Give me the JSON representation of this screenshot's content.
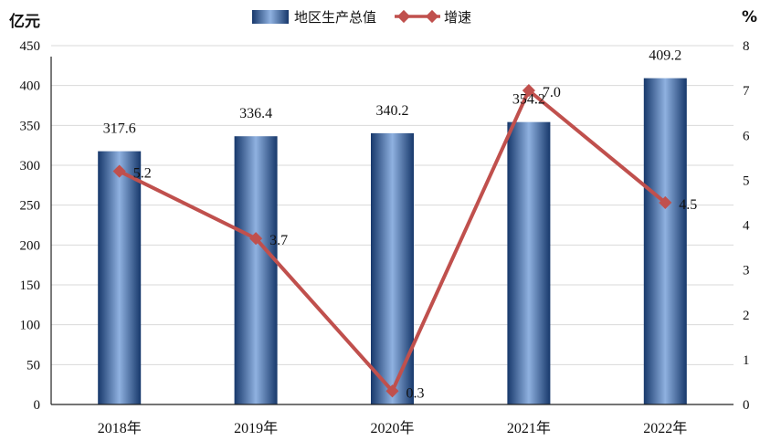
{
  "chart_data": {
    "type": "bar",
    "categories": [
      "2018年",
      "2019年",
      "2020年",
      "2021年",
      "2022年"
    ],
    "series": [
      {
        "name": "地区生产总值",
        "type": "bar",
        "axis": "left",
        "values": [
          317.6,
          336.4,
          340.2,
          354.2,
          409.2
        ]
      },
      {
        "name": "增速",
        "type": "line",
        "axis": "right",
        "values": [
          5.2,
          3.7,
          0.3,
          7.0,
          4.5
        ]
      }
    ],
    "y_left": {
      "unit": "亿元",
      "ylim": [
        0,
        450
      ],
      "ticks": [
        0,
        50,
        100,
        150,
        200,
        250,
        300,
        350,
        400,
        450
      ]
    },
    "y_right": {
      "unit": "%",
      "ylim": [
        0,
        8
      ],
      "ticks": [
        0,
        1,
        2,
        3,
        4,
        5,
        6,
        7,
        8
      ]
    },
    "bar_labels": [
      "317.6",
      "336.4",
      "340.2",
      "354.2",
      "409.2"
    ],
    "line_labels": [
      "5.2",
      "3.7",
      "0.3",
      "7.0",
      "4.5"
    ],
    "legend_position": "top",
    "grid": "horizontal",
    "colors": {
      "bar_dark": "#17386b",
      "bar_light": "#8fb1e0",
      "line": "#c0504d",
      "grid": "#d9d9d9",
      "axis": "#222222"
    }
  }
}
